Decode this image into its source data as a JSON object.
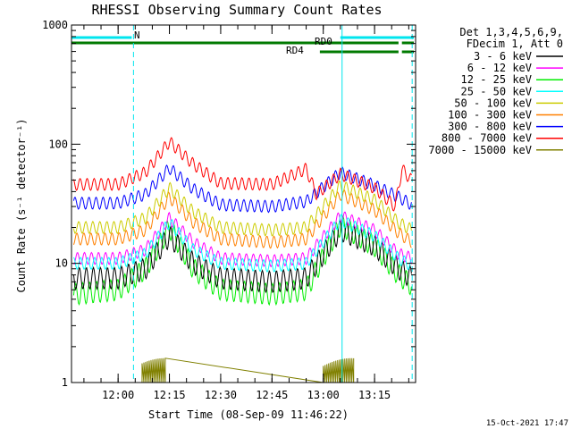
{
  "chart_data": {
    "type": "line",
    "title": "RHESSI Observing Summary Count Rates",
    "xlabel": "Start Time (08-Sep-09 11:46:22)",
    "ylabel": "Count Rate (s⁻¹ detector⁻¹)",
    "y_scale": "log",
    "ylim": [
      1,
      1000
    ],
    "yticks": [
      "1",
      "10",
      "100",
      "1000"
    ],
    "x_range": [
      "11:46:22",
      "13:27:00"
    ],
    "xticks": [
      "12:00",
      "12:15",
      "12:30",
      "12:45",
      "13:00",
      "13:15"
    ],
    "legend_header": [
      "Det 1,3,4,5,6,9,",
      "FDecim 1, Att 0"
    ],
    "legend_position": "right",
    "flags": [
      {
        "label": "N",
        "color": "#00e5ee",
        "segments": [
          [
            "11:46:22",
            "12:04:00"
          ],
          [
            "13:05:00",
            "13:26:30"
          ]
        ]
      },
      {
        "label": "RD0",
        "color": "#007a00",
        "segments": [
          [
            "11:46:22",
            "13:22:00"
          ],
          [
            "13:23:00",
            "13:26:30"
          ]
        ]
      },
      {
        "label": "RD4",
        "color": "#007a00",
        "segments": [
          [
            "12:59:00",
            "13:22:00"
          ],
          [
            "13:23:00",
            "13:26:30"
          ]
        ]
      }
    ],
    "markers": [
      {
        "time": "12:04:30",
        "style": "dashed",
        "color": "#00e5ee"
      },
      {
        "time": "13:05:30",
        "style": "solid",
        "color": "#00e5ee"
      },
      {
        "time": "13:26:00",
        "style": "dashed",
        "color": "#00e5ee"
      }
    ],
    "series": [
      {
        "name": "3 - 6 keV",
        "color": "#000000",
        "x": [
          "11:47",
          "12:00",
          "12:08",
          "12:15",
          "12:22",
          "12:30",
          "12:45",
          "12:55",
          "13:05",
          "13:15",
          "13:22",
          "13:26"
        ],
        "y": [
          7.5,
          7.5,
          9,
          17,
          10,
          7.5,
          7,
          7.5,
          19,
          14,
          9,
          7.5
        ]
      },
      {
        "name": "6 - 12 keV",
        "color": "#ff00ff",
        "x": [
          "11:47",
          "12:00",
          "12:08",
          "12:15",
          "12:22",
          "12:30",
          "12:45",
          "12:55",
          "13:05",
          "13:15",
          "13:22",
          "13:26"
        ],
        "y": [
          11,
          11,
          13,
          24,
          15,
          11,
          10.5,
          11,
          25,
          19,
          12,
          11
        ]
      },
      {
        "name": "12 - 25 keV",
        "color": "#00ee00",
        "x": [
          "11:47",
          "12:00",
          "12:08",
          "12:15",
          "12:22",
          "12:30",
          "12:45",
          "12:55",
          "13:05",
          "13:15",
          "13:22",
          "13:26"
        ],
        "y": [
          5.5,
          6,
          9,
          20,
          9,
          6,
          5.5,
          6,
          21,
          14,
          8,
          6.5
        ]
      },
      {
        "name": "25 - 50 keV",
        "color": "#00ffff",
        "x": [
          "11:47",
          "12:00",
          "12:08",
          "12:15",
          "12:22",
          "12:30",
          "12:45",
          "12:55",
          "13:05",
          "13:15",
          "13:22",
          "13:26"
        ],
        "y": [
          10,
          10,
          12,
          22,
          13,
          10,
          9.5,
          10,
          23,
          17,
          11,
          9.5
        ]
      },
      {
        "name": "50 - 100 keV",
        "color": "#cccc00",
        "x": [
          "11:47",
          "12:00",
          "12:08",
          "12:15",
          "12:22",
          "12:30",
          "12:45",
          "12:55",
          "13:05",
          "13:15",
          "13:22",
          "13:26"
        ],
        "y": [
          20,
          20,
          24,
          43,
          27,
          20,
          19,
          20,
          45,
          34,
          22,
          19
        ]
      },
      {
        "name": "100 - 300 keV",
        "color": "#ff8000",
        "x": [
          "11:47",
          "12:00",
          "12:08",
          "12:15",
          "12:22",
          "12:30",
          "12:45",
          "12:55",
          "13:05",
          "13:15",
          "13:22",
          "13:26"
        ],
        "y": [
          16,
          16,
          19,
          36,
          22,
          16,
          15,
          16,
          38,
          28,
          18,
          15
        ]
      },
      {
        "name": "300 - 800 keV",
        "color": "#0000ff",
        "x": [
          "11:47",
          "12:00",
          "12:08",
          "12:15",
          "12:22",
          "12:30",
          "12:45",
          "12:55",
          "13:05",
          "13:15",
          "13:22",
          "13:26"
        ],
        "y": [
          32,
          32,
          38,
          63,
          42,
          31,
          30,
          33,
          58,
          45,
          36,
          31
        ]
      },
      {
        "name": "800 - 7000 keV",
        "color": "#ff0000",
        "x": [
          "11:47",
          "12:00",
          "12:08",
          "12:15",
          "12:22",
          "12:30",
          "12:45",
          "12:55",
          "12:58",
          "13:05",
          "13:15",
          "13:21",
          "13:23",
          "13:26"
        ],
        "y": [
          46,
          46,
          58,
          105,
          68,
          47,
          46,
          62,
          38,
          56,
          43,
          30,
          62,
          49
        ]
      },
      {
        "name": "7000 - 15000 keV",
        "color": "#808000",
        "x": [
          "12:07",
          "12:08",
          "12:13",
          "12:14",
          "13:00",
          "13:01",
          "13:08",
          "13:09"
        ],
        "y": [
          1,
          1.6,
          1.6,
          1,
          1,
          1.6,
          1.6,
          1
        ]
      }
    ]
  },
  "footer_date": "15-Oct-2021 17:47"
}
